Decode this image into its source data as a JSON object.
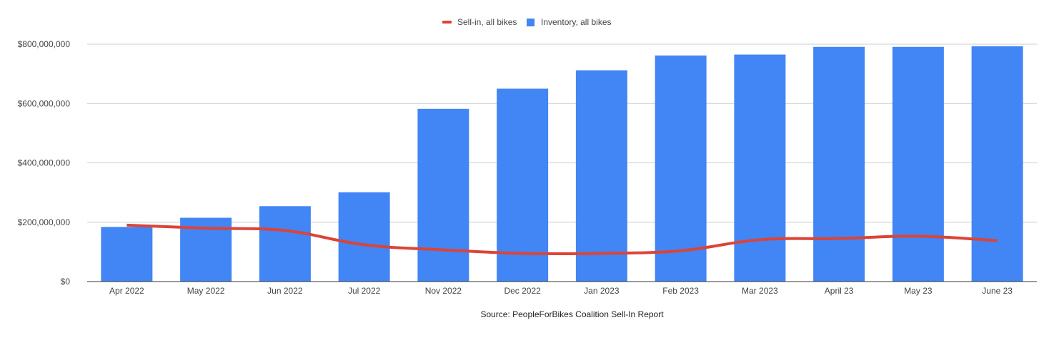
{
  "chart_data": {
    "type": "bar",
    "categories": [
      "Apr 2022",
      "May 2022",
      "Jun 2022",
      "Jul 2022",
      "Nov 2022",
      "Dec 2022",
      "Jan 2023",
      "Feb 2023",
      "Mar 2023",
      "April 23",
      "May 23",
      "June 23"
    ],
    "series": [
      {
        "name": "Inventory, all bikes",
        "type": "bar",
        "color": "#4285f4",
        "values": [
          184000000,
          215000000,
          254000000,
          301000000,
          582000000,
          650000000,
          712000000,
          762000000,
          765000000,
          791000000,
          791000000,
          793000000
        ]
      },
      {
        "name": "Sell-in, all bikes",
        "type": "line",
        "color": "#db4437",
        "values": [
          190000000,
          180000000,
          172000000,
          124000000,
          107000000,
          95000000,
          95000000,
          104000000,
          141000000,
          145000000,
          153000000,
          138000000
        ]
      }
    ],
    "ylim": [
      0,
      800000000
    ],
    "y_ticks": [
      "$0",
      "$200,000,000",
      "$400,000,000",
      "$600,000,000",
      "$800,000,000"
    ],
    "y_tick_values": [
      0,
      200000000,
      400000000,
      600000000,
      800000000
    ],
    "grid": true,
    "legend_position": "top-center",
    "legend": [
      "Sell-in, all bikes",
      "Inventory, all bikes"
    ],
    "xlabel": "Source: PeopleForBikes Coalition Sell-In Report",
    "ylabel": "",
    "title": ""
  },
  "colors": {
    "gridline": "#cccccc",
    "axis_line": "#333333",
    "tick_text": "#444444"
  }
}
